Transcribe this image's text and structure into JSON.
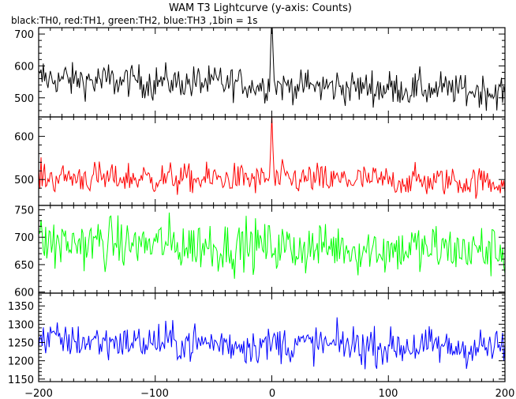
{
  "title": "WAM T3 Lightcurve (y-axis: Counts)",
  "subtitle": "black:TH0, red:TH1, green:TH2, blue:TH3 ,1bin = 1s",
  "chart_data": [
    {
      "type": "line",
      "series_label": "TH0",
      "color": "#000000",
      "xlim": [
        -200,
        200
      ],
      "ylim": [
        440,
        720
      ],
      "yticks": [
        500,
        600,
        700
      ],
      "ytick_labels": [
        "500",
        "600",
        "700"
      ],
      "baseline": 560,
      "amplitude": 42,
      "trend_end": -40,
      "spike": {
        "x": 0,
        "peak": 760
      }
    },
    {
      "type": "line",
      "series_label": "TH1",
      "color": "#ff0000",
      "xlim": [
        -200,
        200
      ],
      "ylim": [
        440,
        645
      ],
      "yticks": [
        500,
        600
      ],
      "ytick_labels": [
        "500",
        "600"
      ],
      "baseline": 505,
      "amplitude": 28,
      "trend_end": -10,
      "spike": {
        "x": 0,
        "peak": 650
      }
    },
    {
      "type": "line",
      "series_label": "TH2",
      "color": "#00ff00",
      "xlim": [
        -200,
        200
      ],
      "ylim": [
        598,
        758
      ],
      "yticks": [
        600,
        650,
        700,
        750
      ],
      "ytick_labels": [
        "600",
        "650",
        "700",
        "750"
      ],
      "baseline": 690,
      "amplitude": 38,
      "trend_end": -15,
      "spike": null
    },
    {
      "type": "line",
      "series_label": "TH3",
      "color": "#0000ff",
      "xlim": [
        -200,
        200
      ],
      "ylim": [
        1143,
        1385
      ],
      "yticks": [
        1150,
        1200,
        1250,
        1300,
        1350
      ],
      "ytick_labels": [
        "1150",
        "1200",
        "1250",
        "1300",
        "1350"
      ],
      "baseline": 1255,
      "amplitude": 42,
      "trend_end": -20,
      "spike": null
    }
  ],
  "x_axis": {
    "ticks": [
      -200,
      -100,
      0,
      100,
      200
    ],
    "tick_labels": [
      "−200",
      "−100",
      "0",
      "100",
      "200"
    ]
  }
}
